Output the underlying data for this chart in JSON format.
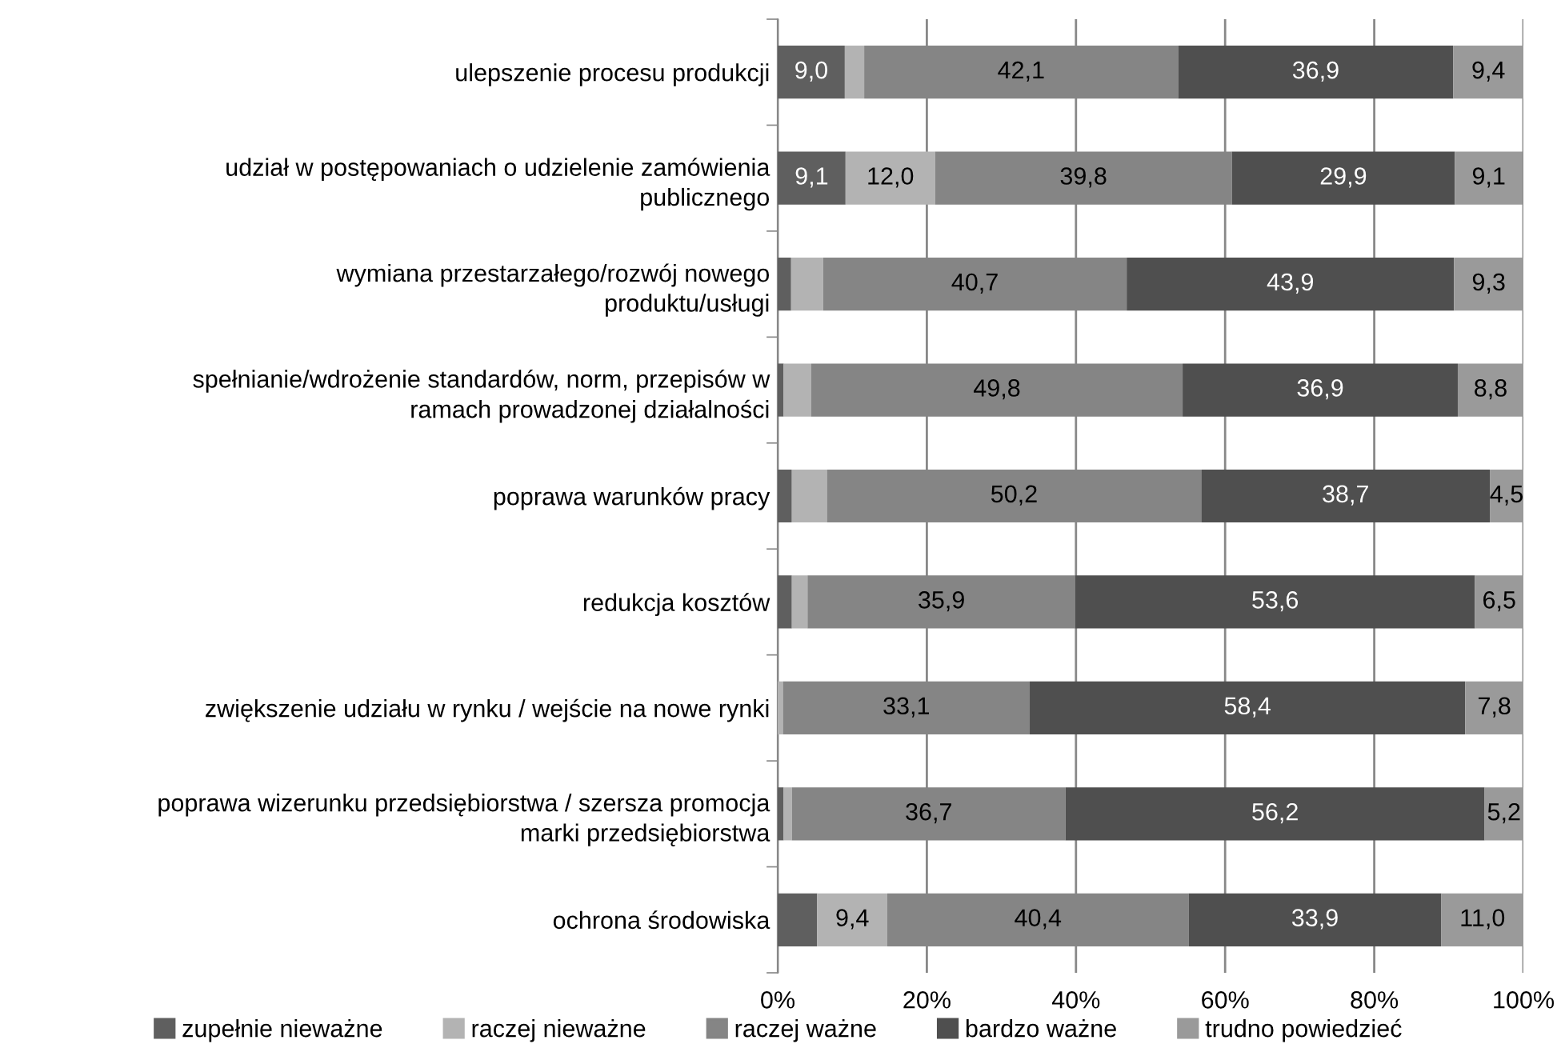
{
  "chart_data": {
    "type": "bar",
    "orientation": "horizontal",
    "stacked": true,
    "categories": [
      "ulepszenie procesu produkcji",
      "udział w postępowaniach o udzielenie zamówienia\npublicznego",
      "wymiana przestarzałego/rozwój nowego\nproduktu/usługi",
      "spełnianie/wdrożenie standardów, norm, przepisów w\nramach prowadzonej działalności",
      "poprawa warunków pracy",
      "redukcja kosztów",
      "zwiększenie udziału w rynku / wejście na nowe rynki",
      "poprawa wizerunku przedsiębiorstwa / szersza promocja\nmarki przedsiębiorstwa",
      "ochrona środowiska"
    ],
    "series": [
      {
        "name": "zupełnie nieważne",
        "color": "#5f5f5f",
        "values": [
          9.0,
          9.1,
          1.8,
          0.8,
          1.9,
          1.9,
          0.0,
          0.8,
          5.3
        ],
        "value_labels": [
          "9,0",
          "9,1",
          null,
          null,
          null,
          null,
          null,
          null,
          null
        ]
      },
      {
        "name": "raczej nieważne",
        "color": "#b3b3b3",
        "values": [
          2.6,
          12.0,
          4.3,
          3.7,
          4.7,
          2.1,
          0.7,
          1.1,
          9.4
        ],
        "value_labels": [
          null,
          "12,0",
          null,
          null,
          null,
          null,
          null,
          null,
          "9,4"
        ]
      },
      {
        "name": "raczej ważne",
        "color": "#858585",
        "values": [
          42.1,
          39.8,
          40.7,
          49.8,
          50.2,
          35.9,
          33.1,
          36.7,
          40.4
        ],
        "value_labels": [
          "42,1",
          "39,8",
          "40,7",
          "49,8",
          "50,2",
          "35,9",
          "33,1",
          "36,7",
          "40,4"
        ]
      },
      {
        "name": "bardzo ważne",
        "color": "#4f4f4f",
        "values": [
          36.9,
          29.9,
          43.9,
          36.9,
          38.7,
          53.6,
          58.4,
          56.2,
          33.9
        ],
        "value_labels": [
          "36,9",
          "29,9",
          "43,9",
          "36,9",
          "38,7",
          "53,6",
          "58,4",
          "56,2",
          "33,9"
        ]
      },
      {
        "name": "trudno powiedzieć",
        "color": "#9a9a9a",
        "values": [
          9.4,
          9.1,
          9.3,
          8.8,
          4.5,
          6.5,
          7.8,
          5.2,
          11.0
        ],
        "value_labels": [
          "9,4",
          "9,1",
          "9,3",
          "8,8",
          "4,5",
          "6,5",
          "7,8",
          "5,2",
          "11,0"
        ]
      }
    ],
    "xlim": [
      0,
      100
    ],
    "xticks": [
      {
        "value": 0,
        "label": "0%"
      },
      {
        "value": 20,
        "label": "20%"
      },
      {
        "value": 40,
        "label": "40%"
      },
      {
        "value": 60,
        "label": "60%"
      },
      {
        "value": 80,
        "label": "80%"
      },
      {
        "value": 100,
        "label": "100%"
      }
    ],
    "grid": "x",
    "legend": "bottom"
  }
}
